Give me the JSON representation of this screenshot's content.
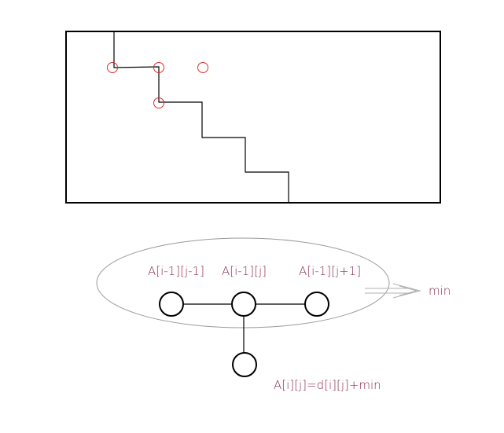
{
  "colors": {
    "label": "#8b2e4a",
    "path_stroke": "#000000",
    "marker_circle": "#d9302c",
    "ellipse_stroke": "#9a9a9a",
    "arrow_stroke": "#b0b0b0"
  },
  "labels": {
    "node_left": "A[i-1][j-1]",
    "node_mid": "A[i-1][j]",
    "node_right": "A[i-1][j+1]",
    "result_arrow": "min",
    "formula": "A[i][j]=d[i][j]+min"
  }
}
